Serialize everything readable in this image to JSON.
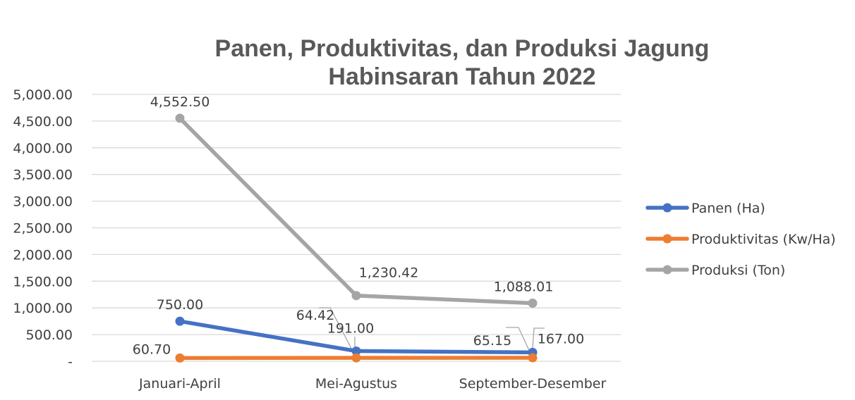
{
  "chart_data": {
    "type": "line",
    "title_line1": "Panen, Produktivitas, dan Produksi Jagung",
    "title_line2": "Habinsaran Tahun 2022",
    "categories": [
      "Januari-April",
      "Mei-Agustus",
      "September-Desember"
    ],
    "ylim": [
      0,
      5000
    ],
    "yticks": [
      {
        "value": 0,
        "label": "-"
      },
      {
        "value": 500,
        "label": "500.00"
      },
      {
        "value": 1000,
        "label": "1,000.00"
      },
      {
        "value": 1500,
        "label": "1,500.00"
      },
      {
        "value": 2000,
        "label": "2,000.00"
      },
      {
        "value": 2500,
        "label": "2,500.00"
      },
      {
        "value": 3000,
        "label": "3,000.00"
      },
      {
        "value": 3500,
        "label": "3,500.00"
      },
      {
        "value": 4000,
        "label": "4,000.00"
      },
      {
        "value": 4500,
        "label": "4,500.00"
      },
      {
        "value": 5000,
        "label": "5,000.00"
      }
    ],
    "grid": true,
    "legend_position": "right",
    "series": [
      {
        "name": "Panen (Ha)",
        "color": "#4472C4",
        "values": [
          750.0,
          191.0,
          167.0
        ],
        "labels": [
          "750.00",
          "191.00",
          "167.00"
        ]
      },
      {
        "name": "Produktivitas (Kw/Ha)",
        "color": "#ED7D31",
        "values": [
          60.7,
          64.42,
          65.15
        ],
        "labels": [
          "60.70",
          "64.42",
          "65.15"
        ]
      },
      {
        "name": "Produksi (Ton)",
        "color": "#A5A5A5",
        "values": [
          4552.5,
          1230.42,
          1088.01
        ],
        "labels": [
          "4,552.50",
          "1,230.42",
          "1,088.01"
        ]
      }
    ]
  }
}
